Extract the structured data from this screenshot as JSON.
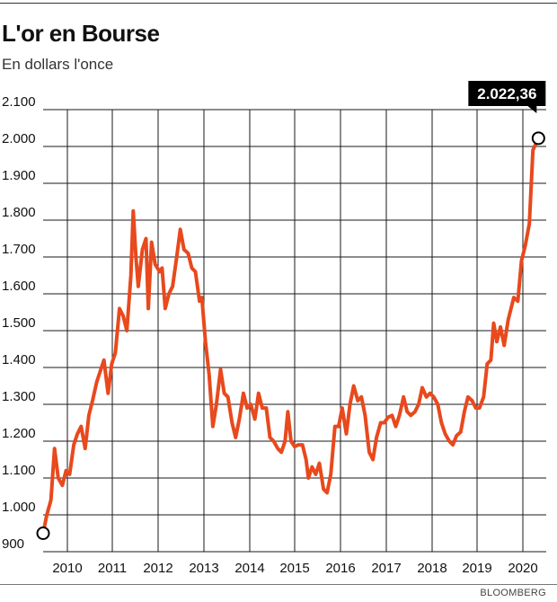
{
  "header": {
    "title": "L'or en Bourse",
    "subtitle": "En dollars l'once"
  },
  "footer": {
    "source": "BLOOMBERG"
  },
  "colors": {
    "line": "#e8491d",
    "grid": "#1a1a1a",
    "callout_bg": "#000000",
    "callout_text": "#ffffff"
  },
  "chart_data": {
    "type": "line",
    "title": "L'or en Bourse",
    "subtitle": "En dollars l'once",
    "xlabel": "",
    "ylabel": "",
    "xlim": [
      2009.75,
      2020.75
    ],
    "ylim": [
      900,
      2100
    ],
    "y_ticks": [
      900,
      1000,
      1100,
      1200,
      1300,
      1400,
      1500,
      1600,
      1700,
      1800,
      1900,
      2000,
      2100
    ],
    "y_tick_labels": [
      "900",
      "1.000",
      "1.100",
      "1.200",
      "1.300",
      "1.400",
      "1.500",
      "1.600",
      "1.700",
      "1.800",
      "1.900",
      "2.000",
      "2.100"
    ],
    "x_tick_labels": [
      "2010",
      "2011",
      "2012",
      "2013",
      "2014",
      "2015",
      "2016",
      "2017",
      "2018",
      "2019",
      "2020"
    ],
    "grid": true,
    "legend": "none",
    "annotation": {
      "label": "2.022,36",
      "x": 2020.58,
      "y": 2022.36
    },
    "start_marker": {
      "x": 2009.75,
      "y": 950
    },
    "series": [
      {
        "values": [
          [
            2009.75,
            950
          ],
          [
            2009.83,
            1000
          ],
          [
            2009.92,
            1040
          ],
          [
            2010.0,
            1180
          ],
          [
            2010.08,
            1100
          ],
          [
            2010.17,
            1080
          ],
          [
            2010.25,
            1120
          ],
          [
            2010.33,
            1110
          ],
          [
            2010.42,
            1190
          ],
          [
            2010.5,
            1220
          ],
          [
            2010.58,
            1240
          ],
          [
            2010.67,
            1180
          ],
          [
            2010.75,
            1270
          ],
          [
            2010.83,
            1310
          ],
          [
            2010.92,
            1360
          ],
          [
            2011.0,
            1390
          ],
          [
            2011.08,
            1420
          ],
          [
            2011.17,
            1330
          ],
          [
            2011.25,
            1410
          ],
          [
            2011.33,
            1440
          ],
          [
            2011.42,
            1560
          ],
          [
            2011.5,
            1540
          ],
          [
            2011.58,
            1500
          ],
          [
            2011.67,
            1650
          ],
          [
            2011.72,
            1825
          ],
          [
            2011.78,
            1700
          ],
          [
            2011.83,
            1620
          ],
          [
            2011.92,
            1720
          ],
          [
            2012.0,
            1750
          ],
          [
            2012.05,
            1560
          ],
          [
            2012.12,
            1740
          ],
          [
            2012.2,
            1680
          ],
          [
            2012.3,
            1660
          ],
          [
            2012.35,
            1670
          ],
          [
            2012.42,
            1560
          ],
          [
            2012.5,
            1600
          ],
          [
            2012.58,
            1620
          ],
          [
            2012.67,
            1700
          ],
          [
            2012.75,
            1775
          ],
          [
            2012.83,
            1720
          ],
          [
            2012.92,
            1710
          ],
          [
            2013.0,
            1670
          ],
          [
            2013.08,
            1660
          ],
          [
            2013.17,
            1580
          ],
          [
            2013.22,
            1590
          ],
          [
            2013.3,
            1470
          ],
          [
            2013.38,
            1380
          ],
          [
            2013.46,
            1240
          ],
          [
            2013.54,
            1300
          ],
          [
            2013.63,
            1395
          ],
          [
            2013.71,
            1330
          ],
          [
            2013.79,
            1320
          ],
          [
            2013.88,
            1250
          ],
          [
            2013.96,
            1210
          ],
          [
            2014.04,
            1260
          ],
          [
            2014.13,
            1330
          ],
          [
            2014.21,
            1290
          ],
          [
            2014.29,
            1300
          ],
          [
            2014.38,
            1260
          ],
          [
            2014.46,
            1330
          ],
          [
            2014.54,
            1290
          ],
          [
            2014.63,
            1290
          ],
          [
            2014.71,
            1210
          ],
          [
            2014.79,
            1200
          ],
          [
            2014.88,
            1180
          ],
          [
            2014.96,
            1170
          ],
          [
            2015.04,
            1200
          ],
          [
            2015.1,
            1280
          ],
          [
            2015.17,
            1200
          ],
          [
            2015.25,
            1185
          ],
          [
            2015.33,
            1190
          ],
          [
            2015.42,
            1190
          ],
          [
            2015.5,
            1150
          ],
          [
            2015.55,
            1100
          ],
          [
            2015.63,
            1130
          ],
          [
            2015.71,
            1110
          ],
          [
            2015.79,
            1140
          ],
          [
            2015.88,
            1070
          ],
          [
            2015.96,
            1060
          ],
          [
            2016.04,
            1110
          ],
          [
            2016.13,
            1240
          ],
          [
            2016.21,
            1240
          ],
          [
            2016.29,
            1290
          ],
          [
            2016.38,
            1220
          ],
          [
            2016.46,
            1300
          ],
          [
            2016.54,
            1350
          ],
          [
            2016.63,
            1310
          ],
          [
            2016.71,
            1320
          ],
          [
            2016.79,
            1270
          ],
          [
            2016.88,
            1170
          ],
          [
            2016.96,
            1150
          ],
          [
            2017.04,
            1210
          ],
          [
            2017.13,
            1250
          ],
          [
            2017.21,
            1250
          ],
          [
            2017.29,
            1265
          ],
          [
            2017.38,
            1270
          ],
          [
            2017.46,
            1240
          ],
          [
            2017.54,
            1270
          ],
          [
            2017.63,
            1320
          ],
          [
            2017.71,
            1280
          ],
          [
            2017.79,
            1270
          ],
          [
            2017.88,
            1280
          ],
          [
            2017.96,
            1300
          ],
          [
            2018.04,
            1345
          ],
          [
            2018.13,
            1320
          ],
          [
            2018.21,
            1330
          ],
          [
            2018.29,
            1320
          ],
          [
            2018.38,
            1300
          ],
          [
            2018.46,
            1250
          ],
          [
            2018.54,
            1220
          ],
          [
            2018.63,
            1200
          ],
          [
            2018.71,
            1190
          ],
          [
            2018.79,
            1215
          ],
          [
            2018.88,
            1225
          ],
          [
            2018.96,
            1280
          ],
          [
            2019.04,
            1320
          ],
          [
            2019.13,
            1310
          ],
          [
            2019.21,
            1290
          ],
          [
            2019.29,
            1290
          ],
          [
            2019.38,
            1320
          ],
          [
            2019.46,
            1410
          ],
          [
            2019.54,
            1420
          ],
          [
            2019.6,
            1520
          ],
          [
            2019.67,
            1470
          ],
          [
            2019.75,
            1510
          ],
          [
            2019.83,
            1460
          ],
          [
            2019.92,
            1530
          ],
          [
            2019.96,
            1550
          ],
          [
            2020.04,
            1590
          ],
          [
            2020.13,
            1580
          ],
          [
            2020.21,
            1690
          ],
          [
            2020.29,
            1730
          ],
          [
            2020.38,
            1790
          ],
          [
            2020.46,
            1990
          ],
          [
            2020.58,
            2022.36
          ]
        ]
      }
    ]
  }
}
